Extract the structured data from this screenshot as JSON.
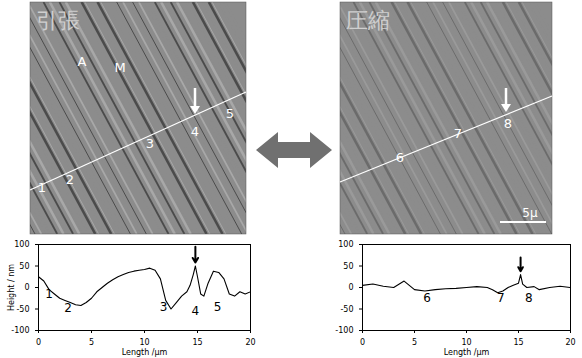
{
  "images": [
    {
      "title": "引張",
      "labels": [
        "A",
        "M",
        "1",
        "2",
        "3",
        "4",
        "5"
      ]
    },
    {
      "title": "圧縮",
      "labels": [
        "6",
        "7",
        "8"
      ],
      "scale_bar": "5μ"
    }
  ],
  "chart_data": [
    {
      "type": "line",
      "xlabel": "Length /μm",
      "ylabel": "Height / nm",
      "color": "#000000",
      "x": [
        0,
        0.5,
        1,
        1.5,
        2,
        2.5,
        3,
        3.5,
        4,
        4.5,
        5,
        5.5,
        6,
        6.5,
        7,
        7.5,
        8,
        8.5,
        9,
        9.5,
        10,
        10.5,
        11,
        11.5,
        12,
        12.5,
        13,
        13.5,
        14,
        14.3,
        14.6,
        14.8,
        15,
        15.3,
        15.6,
        16,
        16.5,
        17,
        17.5,
        18,
        18.5,
        19,
        19.5,
        20
      ],
      "values": [
        25,
        15,
        -5,
        -15,
        -25,
        -30,
        -35,
        -40,
        -42,
        -35,
        -25,
        -10,
        0,
        10,
        18,
        25,
        30,
        35,
        38,
        40,
        42,
        45,
        40,
        20,
        -30,
        -50,
        -35,
        -20,
        -10,
        5,
        30,
        50,
        25,
        -15,
        -20,
        10,
        38,
        35,
        20,
        -15,
        -20,
        -10,
        -15,
        -10
      ],
      "xlim": [
        0,
        20
      ],
      "xticks": [
        0,
        5,
        10,
        15,
        20
      ],
      "ylim": [
        -100,
        100
      ],
      "yticks": [
        -100,
        -50,
        0,
        50,
        100
      ],
      "annotations": [
        {
          "text": "1",
          "x": 1,
          "y": -15
        },
        {
          "text": "2",
          "x": 2.8,
          "y": -48
        },
        {
          "text": "3",
          "x": 11.8,
          "y": -45
        },
        {
          "text": "4",
          "x": 14.8,
          "y": -55
        },
        {
          "text": "5",
          "x": 16.9,
          "y": -45
        }
      ],
      "arrow": {
        "x": 14.8,
        "y1": 95,
        "y2": 58
      }
    },
    {
      "type": "line",
      "xlabel": "Length /μm",
      "color": "#000000",
      "x": [
        0,
        1,
        2,
        3,
        4,
        5,
        6,
        7,
        8,
        9,
        10,
        11,
        12,
        12.5,
        13,
        13.5,
        14,
        14.5,
        15,
        15.2,
        15.4,
        15.8,
        16.5,
        17,
        18,
        19,
        20
      ],
      "values": [
        5,
        8,
        3,
        0,
        15,
        -5,
        -8,
        -5,
        -3,
        -2,
        0,
        2,
        0,
        -5,
        -12,
        -8,
        0,
        5,
        10,
        30,
        8,
        0,
        2,
        -5,
        0,
        3,
        0
      ],
      "xlim": [
        0,
        20
      ],
      "xticks": [
        0,
        5,
        10,
        15,
        20
      ],
      "ylim": [
        -100,
        100
      ],
      "yticks": [
        -100,
        -50,
        0,
        50,
        100
      ],
      "annotations": [
        {
          "text": "6",
          "x": 6.2,
          "y": -25
        },
        {
          "text": "7",
          "x": 13.3,
          "y": -25
        },
        {
          "text": "8",
          "x": 16,
          "y": -25
        }
      ],
      "arrow": {
        "x": 15.2,
        "y1": 70,
        "y2": 38
      }
    }
  ]
}
